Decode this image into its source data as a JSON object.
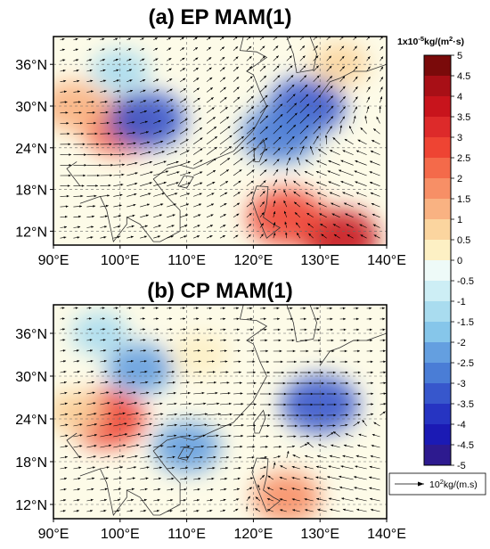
{
  "colorbar": {
    "unit_prefix": "1x10",
    "unit_exp": "-5",
    "unit_mid": "kg/(m",
    "unit_sq": "2",
    "unit_end": "·s)",
    "ticks": [
      "5",
      "4.5",
      "4",
      "3.5",
      "3",
      "2.5",
      "2",
      "1.5",
      "1",
      "0.5",
      "0",
      "-0.5",
      "-1",
      "-1.5",
      "-2",
      "-2.5",
      "-3",
      "-3.5",
      "-4",
      "-4.5",
      "-5"
    ],
    "colors": [
      "#7a0a0a",
      "#a80f16",
      "#c8141c",
      "#dd2a2a",
      "#ee4433",
      "#f46a4a",
      "#f78f66",
      "#f9b282",
      "#fbd59f",
      "#fdf0c4",
      "#eefaf8",
      "#cdeef5",
      "#a9dcef",
      "#86c6ea",
      "#649fe0",
      "#4a7dd6",
      "#3757cc",
      "#2634c2",
      "#1b1ab4",
      "#2d1a8f"
    ]
  },
  "reference_vector": {
    "text_base": "10",
    "text_exp": "2",
    "text_unit": "kg/(m.s)"
  },
  "chart_data": [
    {
      "type": "heatmap",
      "title": "(a) EP MAM(1)",
      "x_ticks": [
        "90°E",
        "100°E",
        "110°E",
        "120°E",
        "130°E",
        "140°E"
      ],
      "y_ticks": [
        "36°N",
        "30°N",
        "24°N",
        "18°N",
        "12°N"
      ],
      "xlim": [
        90,
        140
      ],
      "ylim": [
        10,
        40
      ],
      "field": "water vapour flux divergence with flux vectors",
      "anomalies": [
        {
          "lon": 100,
          "lat": 27,
          "value": 2.5
        },
        {
          "lon": 93,
          "lat": 30,
          "value": 1.5
        },
        {
          "lon": 104,
          "lat": 28,
          "value": -3
        },
        {
          "lon": 128,
          "lat": 30,
          "value": -3
        },
        {
          "lon": 124,
          "lat": 26,
          "value": -2.5
        },
        {
          "lon": 100,
          "lat": 35,
          "value": -1
        },
        {
          "lon": 133,
          "lat": 11,
          "value": 4
        },
        {
          "lon": 125,
          "lat": 14,
          "value": 3
        },
        {
          "lon": 133,
          "lat": 36,
          "value": 1
        }
      ],
      "vectors": [
        {
          "lon": 95,
          "lat": 22,
          "u": 1.0,
          "v": 0.0
        },
        {
          "lon": 105,
          "lat": 20,
          "u": 1.0,
          "v": 0.3
        },
        {
          "lon": 115,
          "lat": 24,
          "u": 0.8,
          "v": 0.6
        },
        {
          "lon": 125,
          "lat": 28,
          "u": 0.7,
          "v": 0.7
        },
        {
          "lon": 135,
          "lat": 20,
          "u": -0.8,
          "v": 0.3
        }
      ]
    },
    {
      "type": "heatmap",
      "title": "(b) CP MAM(1)",
      "x_ticks": [
        "90°E",
        "100°E",
        "110°E",
        "120°E",
        "130°E",
        "140°E"
      ],
      "y_ticks": [
        "36°N",
        "30°N",
        "24°N",
        "18°N",
        "12°N"
      ],
      "xlim": [
        90,
        140
      ],
      "ylim": [
        10,
        40
      ],
      "field": "water vapour flux divergence with flux vectors",
      "anomalies": [
        {
          "lon": 98,
          "lat": 24,
          "value": 3
        },
        {
          "lon": 93,
          "lat": 25,
          "value": 1
        },
        {
          "lon": 103,
          "lat": 31,
          "value": -2
        },
        {
          "lon": 110,
          "lat": 20,
          "value": -2
        },
        {
          "lon": 130,
          "lat": 26,
          "value": -3
        },
        {
          "lon": 97,
          "lat": 36,
          "value": -1
        },
        {
          "lon": 125,
          "lat": 13,
          "value": 2
        },
        {
          "lon": 112,
          "lat": 33,
          "value": 0.5
        }
      ],
      "vectors": [
        {
          "lon": 100,
          "lat": 22,
          "u": 1.0,
          "v": 0.2
        },
        {
          "lon": 112,
          "lat": 24,
          "u": 1.0,
          "v": 0.1
        },
        {
          "lon": 125,
          "lat": 27,
          "u": 1.0,
          "v": 0.0
        },
        {
          "lon": 135,
          "lat": 15,
          "u": -0.9,
          "v": 0.2
        }
      ]
    }
  ]
}
